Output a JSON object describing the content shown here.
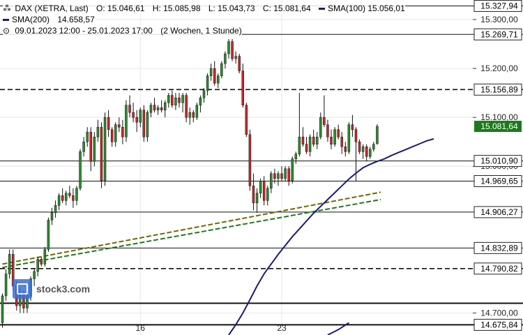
{
  "header": {
    "instrument": "DAX (XETRA, Last)",
    "open": "O: 15.046,61",
    "high": "H: 15.085,98",
    "low": "L: 15.043,73",
    "close": "C: 15.081,64",
    "sma100_label": "SMA(100)",
    "sma100_value": "15.056,01",
    "sma200_label": "SMA(200)",
    "sma200_value": "14.658,57",
    "range": "09.01.2023 12:00 - 25.01.2023 17:00",
    "interval": "(2 Wochen, 1 Stunde)"
  },
  "logo": {
    "text": "stock3.com"
  },
  "colors": {
    "up": "#2e8b2e",
    "down": "#c62828",
    "sma": "#1a1a7a",
    "trend_olive": "#6b6b00",
    "trend_green": "#1e7a1e",
    "price_tag": "#1b7a1b"
  },
  "chart_data": {
    "type": "candlestick",
    "ylim": [
      14655,
      15340
    ],
    "y_ticks": [
      {
        "value": 15300,
        "label": "15.300,00"
      },
      {
        "value": 15200,
        "label": "15.200,00"
      },
      {
        "value": 15100,
        "label": "15.100,00"
      },
      {
        "value": 15000,
        "label": "15.000,00"
      },
      {
        "value": 14700,
        "label": "14.700,00"
      }
    ],
    "x_ticks": [
      {
        "label": "16",
        "index": 39
      },
      {
        "label": "23",
        "index": 79
      }
    ],
    "price_levels": [
      {
        "value": 15327.94,
        "label": "15.327,94",
        "style": "solid"
      },
      {
        "value": 15269.71,
        "label": "15.269,71",
        "style": "solid"
      },
      {
        "value": 15156.89,
        "label": "15.156,89",
        "style": "dashed"
      },
      {
        "value": 15010.9,
        "label": "15.010,90",
        "style": "solid"
      },
      {
        "value": 14969.65,
        "label": "14.969,65",
        "style": "solid"
      },
      {
        "value": 14906.27,
        "label": "14.906,27",
        "style": "solid"
      },
      {
        "value": 14832.89,
        "label": "14.832,89",
        "style": "solid"
      },
      {
        "value": 14790.82,
        "label": "14.790,82",
        "style": "dashed"
      },
      {
        "value": 14720.0,
        "label": "",
        "style": "thick"
      },
      {
        "value": 14675.84,
        "label": "14.675,84",
        "style": "thick"
      }
    ],
    "last_price": {
      "value": 15081.64,
      "label": "15.081,64"
    },
    "trendlines": [
      {
        "color": "olive",
        "from": [
          0,
          14800
        ],
        "to": [
          107,
          14947
        ]
      },
      {
        "color": "green",
        "from": [
          0,
          14793
        ],
        "to": [
          107,
          14932
        ]
      }
    ],
    "candles": [
      [
        14680,
        14740,
        14670,
        14735
      ],
      [
        14735,
        14790,
        14725,
        14780
      ],
      [
        14780,
        14830,
        14770,
        14820
      ],
      [
        14820,
        14830,
        14745,
        14755
      ],
      [
        14755,
        14765,
        14705,
        14715
      ],
      [
        14715,
        14750,
        14700,
        14740
      ],
      [
        14740,
        14745,
        14700,
        14710
      ],
      [
        14710,
        14745,
        14700,
        14735
      ],
      [
        14735,
        14775,
        14725,
        14770
      ],
      [
        14770,
        14790,
        14755,
        14785
      ],
      [
        14785,
        14815,
        14775,
        14810
      ],
      [
        14810,
        14815,
        14795,
        14800
      ],
      [
        14800,
        14835,
        14795,
        14830
      ],
      [
        14830,
        14895,
        14825,
        14890
      ],
      [
        14890,
        14915,
        14880,
        14905
      ],
      [
        14905,
        14930,
        14895,
        14920
      ],
      [
        14920,
        14945,
        14910,
        14940
      ],
      [
        14940,
        14955,
        14925,
        14930
      ],
      [
        14930,
        14950,
        14920,
        14945
      ],
      [
        14945,
        14960,
        14935,
        14940
      ],
      [
        14940,
        14955,
        14915,
        14930
      ],
      [
        14930,
        14960,
        14920,
        14955
      ],
      [
        14955,
        15035,
        14950,
        15030
      ],
      [
        15030,
        15060,
        15020,
        15050
      ],
      [
        15050,
        15080,
        15040,
        15070
      ],
      [
        15070,
        15080,
        14990,
        15010
      ],
      [
        15010,
        15070,
        15000,
        15060
      ],
      [
        15060,
        15095,
        15050,
        15080
      ],
      [
        15080,
        15090,
        14955,
        14970
      ],
      [
        14970,
        15110,
        14960,
        15100
      ],
      [
        15100,
        15115,
        15060,
        15075
      ],
      [
        15075,
        15080,
        15040,
        15050
      ],
      [
        15050,
        15090,
        15040,
        15085
      ],
      [
        15085,
        15100,
        15070,
        15080
      ],
      [
        15080,
        15095,
        15045,
        15060
      ],
      [
        15060,
        15135,
        15050,
        15125
      ],
      [
        15125,
        15145,
        15100,
        15110
      ],
      [
        15110,
        15130,
        15090,
        15100
      ],
      [
        15100,
        15115,
        15070,
        15090
      ],
      [
        15090,
        15120,
        15080,
        15115
      ],
      [
        15115,
        15125,
        15050,
        15060
      ],
      [
        15060,
        15115,
        15050,
        15110
      ],
      [
        15110,
        15130,
        15100,
        15125
      ],
      [
        15125,
        15140,
        15110,
        15115
      ],
      [
        15115,
        15125,
        15105,
        15120
      ],
      [
        15120,
        15135,
        15110,
        15115
      ],
      [
        15115,
        15135,
        15100,
        15130
      ],
      [
        15130,
        15150,
        15120,
        15145
      ],
      [
        15145,
        15155,
        15120,
        15125
      ],
      [
        15125,
        15150,
        15115,
        15140
      ],
      [
        15140,
        15150,
        15120,
        15130
      ],
      [
        15130,
        15150,
        15110,
        15145
      ],
      [
        15145,
        15150,
        15090,
        15100
      ],
      [
        15100,
        15120,
        15085,
        15110
      ],
      [
        15110,
        15115,
        15090,
        15100
      ],
      [
        15100,
        15130,
        15095,
        15125
      ],
      [
        15125,
        15145,
        15110,
        15140
      ],
      [
        15140,
        15160,
        15130,
        15155
      ],
      [
        15155,
        15190,
        15145,
        15185
      ],
      [
        15185,
        15210,
        15175,
        15200
      ],
      [
        15200,
        15215,
        15165,
        15170
      ],
      [
        15170,
        15190,
        15160,
        15185
      ],
      [
        15185,
        15215,
        15180,
        15210
      ],
      [
        15210,
        15235,
        15200,
        15230
      ],
      [
        15230,
        15260,
        15220,
        15255
      ],
      [
        15255,
        15260,
        15215,
        15220
      ],
      [
        15220,
        15235,
        15210,
        15225
      ],
      [
        15225,
        15230,
        15190,
        15195
      ],
      [
        15195,
        15210,
        15120,
        15125
      ],
      [
        15125,
        15130,
        15060,
        15065
      ],
      [
        15065,
        15075,
        14950,
        14960
      ],
      [
        14960,
        14985,
        14910,
        14925
      ],
      [
        14925,
        14955,
        14905,
        14945
      ],
      [
        14945,
        14975,
        14935,
        14970
      ],
      [
        14970,
        14980,
        14920,
        14930
      ],
      [
        14930,
        14960,
        14920,
        14955
      ],
      [
        14955,
        14990,
        14945,
        14985
      ],
      [
        14985,
        14995,
        14965,
        14975
      ],
      [
        14975,
        14990,
        14960,
        14985
      ],
      [
        14985,
        15000,
        14970,
        14975
      ],
      [
        14975,
        15000,
        14970,
        14995
      ],
      [
        14995,
        15000,
        14960,
        14970
      ],
      [
        14970,
        15020,
        14965,
        15015
      ],
      [
        15015,
        15030,
        15005,
        15025
      ],
      [
        15025,
        15150,
        15020,
        15060
      ],
      [
        15060,
        15080,
        15040,
        15045
      ],
      [
        15045,
        15060,
        15025,
        15030
      ],
      [
        15030,
        15065,
        15020,
        15060
      ],
      [
        15060,
        15075,
        15040,
        15045
      ],
      [
        15045,
        15070,
        15035,
        15060
      ],
      [
        15060,
        15110,
        15055,
        15100
      ],
      [
        15100,
        15145,
        15080,
        15085
      ],
      [
        15085,
        15095,
        15050,
        15060
      ],
      [
        15060,
        15075,
        15035,
        15045
      ],
      [
        15045,
        15080,
        15040,
        15075
      ],
      [
        15075,
        15085,
        15055,
        15060
      ],
      [
        15060,
        15070,
        15025,
        15040
      ],
      [
        15040,
        15050,
        15020,
        15030
      ],
      [
        15030,
        15090,
        15025,
        15085
      ],
      [
        15085,
        15105,
        15060,
        15075
      ],
      [
        15075,
        15080,
        14970,
        15050
      ],
      [
        15050,
        15055,
        15025,
        15030
      ],
      [
        15030,
        15045,
        15015,
        15040
      ],
      [
        15040,
        15045,
        15010,
        15020
      ],
      [
        15020,
        15040,
        15015,
        15035
      ],
      [
        15035,
        15050,
        15030,
        15045
      ],
      [
        15046.61,
        15085.98,
        15043.73,
        15081.64
      ]
    ],
    "sma100": [
      [
        64,
        14655
      ],
      [
        66,
        14676
      ],
      [
        68,
        14700
      ],
      [
        70,
        14727
      ],
      [
        72,
        14755
      ],
      [
        74,
        14780
      ],
      [
        76,
        14800
      ],
      [
        78,
        14820
      ],
      [
        80,
        14838
      ],
      [
        82,
        14856
      ],
      [
        84,
        14872
      ],
      [
        86,
        14888
      ],
      [
        88,
        14904
      ],
      [
        90,
        14918
      ],
      [
        92,
        14932
      ],
      [
        94,
        14946
      ],
      [
        96,
        14960
      ],
      [
        98,
        14974
      ],
      [
        100,
        14986
      ],
      [
        102,
        14997
      ],
      [
        104,
        15004
      ],
      [
        106,
        15010
      ],
      [
        108,
        15015
      ],
      [
        110,
        15022
      ],
      [
        112,
        15028
      ],
      [
        114,
        15034
      ],
      [
        116,
        15040
      ],
      [
        118,
        15046
      ],
      [
        120,
        15052
      ],
      [
        122,
        15056
      ]
    ],
    "sma200": [
      [
        92,
        14655
      ],
      [
        95,
        14666
      ],
      [
        98,
        14680
      ]
    ]
  }
}
